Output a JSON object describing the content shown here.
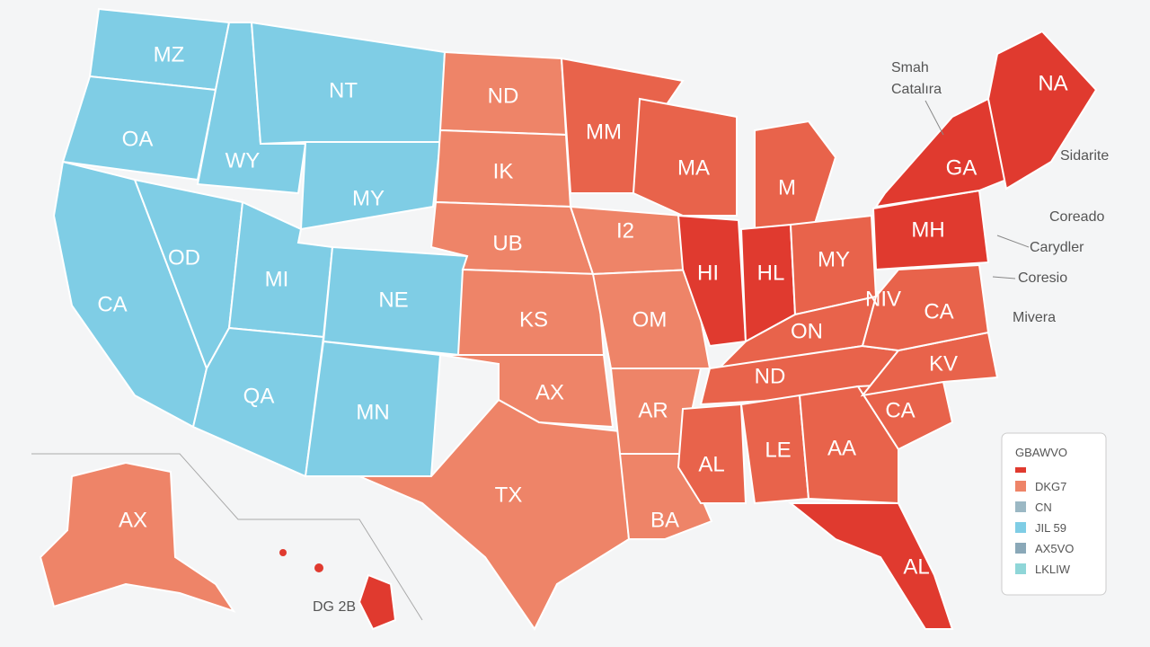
{
  "map": {
    "states": [
      "MZ",
      "NT",
      "OA",
      "WY",
      "MY",
      "OD",
      "CA",
      "MI",
      "NE",
      "QA",
      "MN",
      "ND",
      "IK",
      "UB",
      "KS",
      "AX",
      "TX",
      "MM",
      "I2",
      "OM",
      "AR",
      "BA",
      "MA",
      "M",
      "HI",
      "HL",
      "MY",
      "ON",
      "ND",
      "AL",
      "LE",
      "AA",
      "NIV",
      "CA",
      "KV",
      "CA",
      "MH",
      "GA",
      "NA",
      "AL",
      "AX"
    ],
    "callouts": [
      "Smah",
      "Catalıra",
      "Sidarite",
      "Coreado",
      "Carydler",
      "Coresio",
      "Mivera"
    ],
    "inset_label": "DG 2B",
    "legend": {
      "title": "GBAWVO",
      "items": [
        "DKG7",
        "CN",
        "JIL 59",
        "AX5VO",
        "LKLIW"
      ]
    }
  }
}
